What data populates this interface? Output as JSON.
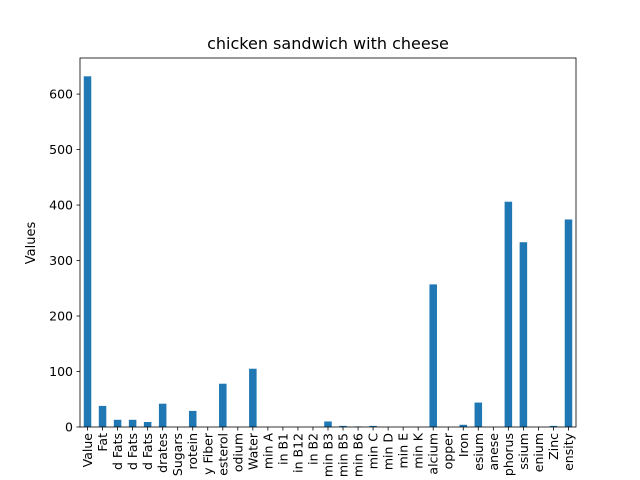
{
  "chart_data": {
    "type": "bar",
    "title": "chicken sandwich with cheese",
    "xlabel": "",
    "ylabel": "Values",
    "ylim": [
      0,
      665
    ],
    "yticks": [
      0,
      100,
      200,
      300,
      400,
      500,
      600
    ],
    "grid": false,
    "legend": "none",
    "bar_color": "#1f77b4",
    "categories": [
      "Value",
      "Fat",
      "d Fats",
      "d Fats",
      "d Fats",
      "drates",
      "Sugars",
      "rotein",
      "y Fiber",
      "esterol",
      "odium",
      "Water",
      "min A",
      "in B1",
      "in B12",
      "in B2",
      "min B3",
      "min B5",
      "min B6",
      "min C",
      "min D",
      "min E",
      "min K",
      "alcium",
      "opper",
      "Iron",
      "esium",
      "anese",
      "phorus",
      "ssium",
      "enium",
      "Zinc",
      "ensity"
    ],
    "values": [
      632,
      38,
      13,
      13,
      9,
      42,
      0,
      29,
      0,
      78,
      0,
      105,
      0,
      0,
      0,
      0,
      10,
      2,
      1,
      2,
      0,
      0,
      0,
      257,
      0,
      4,
      44,
      0,
      406,
      333,
      0,
      2,
      374
    ]
  }
}
